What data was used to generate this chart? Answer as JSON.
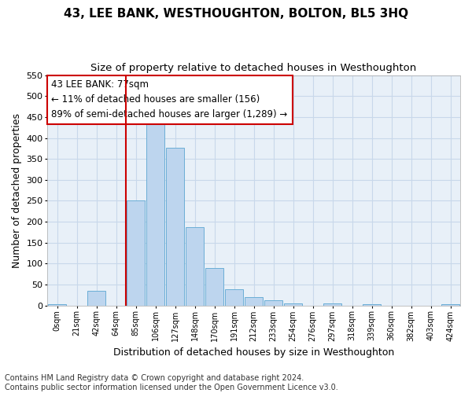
{
  "title": "43, LEE BANK, WESTHOUGHTON, BOLTON, BL5 3HQ",
  "subtitle": "Size of property relative to detached houses in Westhoughton",
  "xlabel": "Distribution of detached houses by size in Westhoughton",
  "ylabel": "Number of detached properties",
  "bin_labels": [
    "0sqm",
    "21sqm",
    "42sqm",
    "64sqm",
    "85sqm",
    "106sqm",
    "127sqm",
    "148sqm",
    "170sqm",
    "191sqm",
    "212sqm",
    "233sqm",
    "254sqm",
    "276sqm",
    "297sqm",
    "318sqm",
    "339sqm",
    "360sqm",
    "382sqm",
    "403sqm",
    "424sqm"
  ],
  "bar_heights": [
    4,
    0,
    35,
    0,
    250,
    452,
    376,
    187,
    90,
    38,
    21,
    12,
    5,
    0,
    5,
    0,
    4,
    0,
    0,
    0,
    4
  ],
  "bar_color": "#BDD5EE",
  "bar_edge_color": "#6BAED6",
  "vline_color": "#CC0000",
  "annotation_text": "43 LEE BANK: 77sqm\n← 11% of detached houses are smaller (156)\n89% of semi-detached houses are larger (1,289) →",
  "annotation_box_color": "#CC0000",
  "ylim": [
    0,
    550
  ],
  "yticks": [
    0,
    50,
    100,
    150,
    200,
    250,
    300,
    350,
    400,
    450,
    500,
    550
  ],
  "grid_color": "#C8D8EA",
  "background_color": "#E8F0F8",
  "footer_line1": "Contains HM Land Registry data © Crown copyright and database right 2024.",
  "footer_line2": "Contains public sector information licensed under the Open Government Licence v3.0.",
  "title_fontsize": 11,
  "subtitle_fontsize": 9.5,
  "xlabel_fontsize": 9,
  "ylabel_fontsize": 9,
  "annotation_fontsize": 8.5,
  "footer_fontsize": 7,
  "tick_labelsize": 8,
  "xtick_labelsize": 7
}
